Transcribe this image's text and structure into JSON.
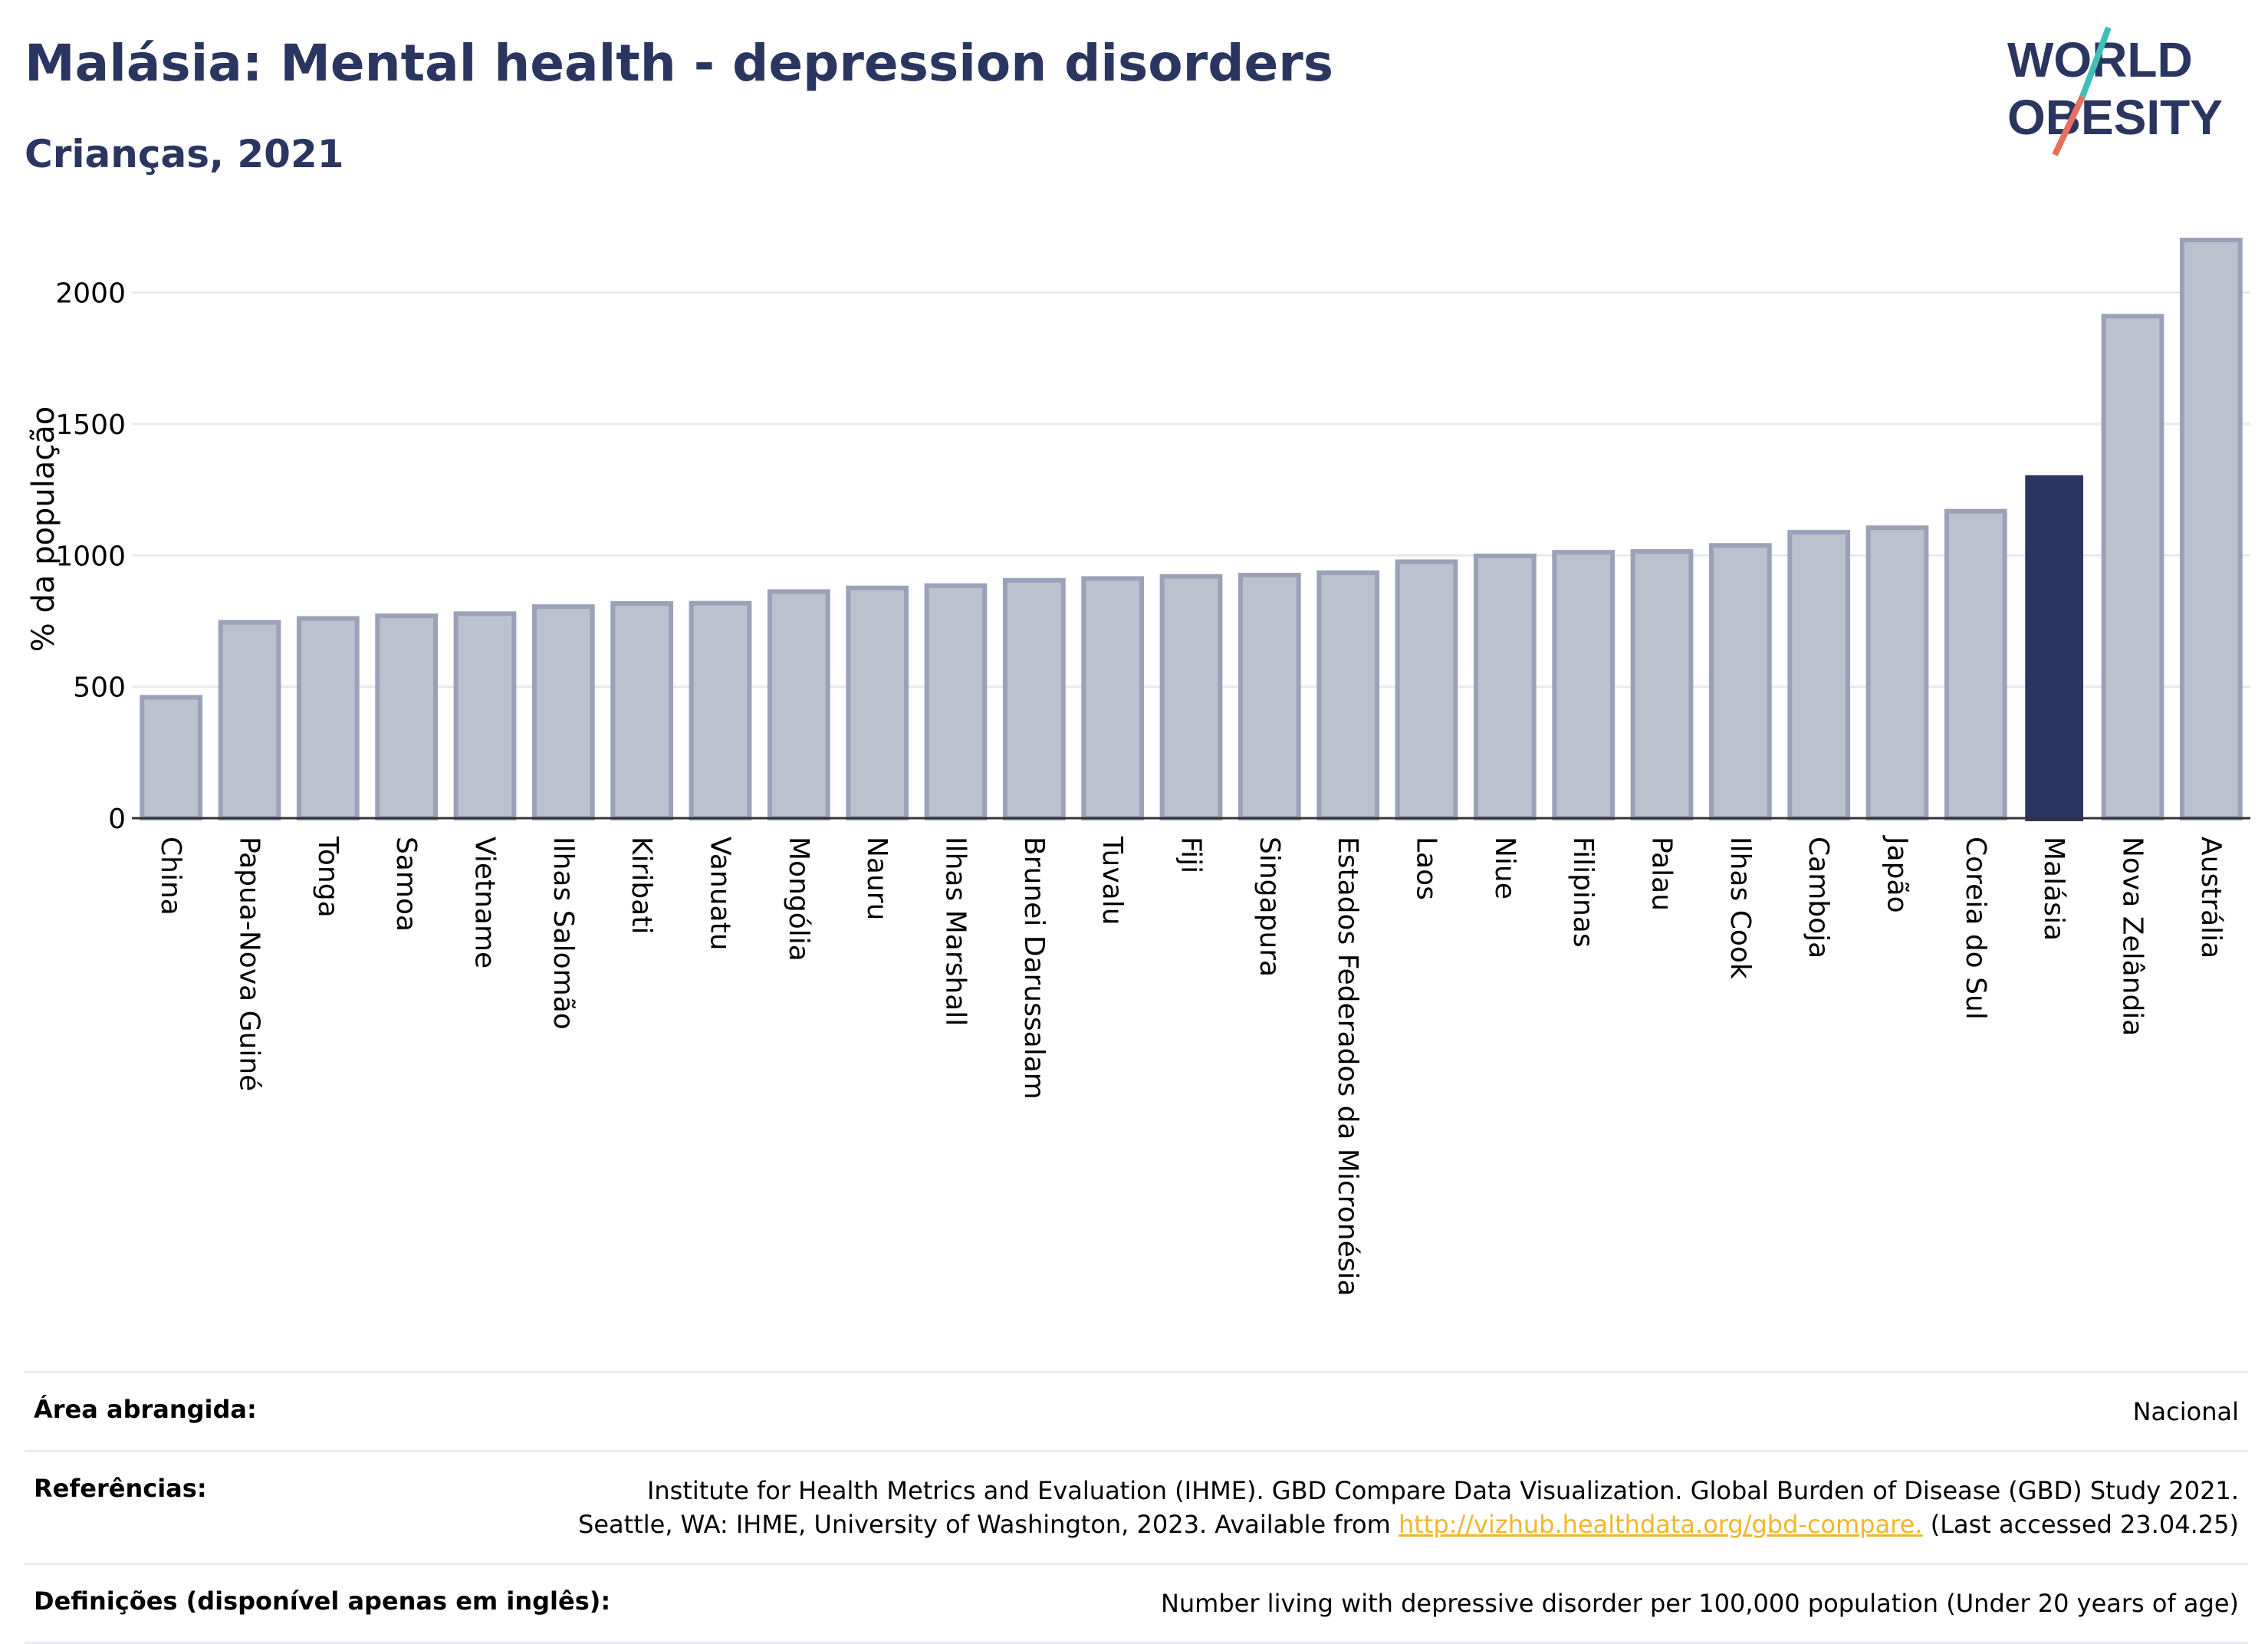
{
  "header": {
    "title": "Malásia: Mental health - depression disorders",
    "subtitle": "Crianças, 2021",
    "logo_line1": "WORLD",
    "logo_line2": "OBESITY"
  },
  "chart_data": {
    "type": "bar",
    "ylabel": "% da população",
    "ylim": [
      0,
      2200
    ],
    "yticks": [
      0,
      500,
      1000,
      1500,
      2000
    ],
    "grid": true,
    "categories": [
      "China",
      "Papua-Nova Guiné",
      "Tonga",
      "Samoa",
      "Vietname",
      "Ilhas Salomão",
      "Kiribati",
      "Vanuatu",
      "Mongólia",
      "Nauru",
      "Ilhas Marshall",
      "Brunei Darussalam",
      "Tuvalu",
      "Fiji",
      "Singapura",
      "Estados Federados da Micronésia",
      "Laos",
      "Niue",
      "Filipinas",
      "Palau",
      "Ilhas Cook",
      "Camboja",
      "Japão",
      "Coreia do Sul",
      "Malásia",
      "Nova Zelândia",
      "Austrália"
    ],
    "values": [
      460,
      745,
      760,
      770,
      778,
      805,
      817,
      818,
      862,
      876,
      885,
      905,
      912,
      920,
      925,
      934,
      976,
      998,
      1012,
      1015,
      1038,
      1088,
      1105,
      1168,
      1305,
      1910,
      2200
    ],
    "highlight": "Malásia",
    "colors": {
      "bar": "#bcc1cf",
      "bar_edge": "#9aa1b8",
      "highlight": "#2a3560",
      "grid": "#e6e9f0",
      "axis": "#333333"
    }
  },
  "info": {
    "area_label": "Área abrangida:",
    "area_value": "Nacional",
    "ref_label": "Referências:",
    "ref_line1": "Institute for Health Metrics and Evaluation (IHME). GBD Compare Data Visualization. Global Burden of Disease (GBD) Study 2021.",
    "ref_line2_pre": "Seattle, WA: IHME, University of Washington, 2023. Available from",
    "ref_link": "http://vizhub.healthdata.org/gbd-compare.",
    "ref_line2_post": "(Last accessed 23.04.25)",
    "def_label": "Definições (disponível apenas em inglês):",
    "def_value": "Number living with depressive disorder per 100,000 population (Under 20 years of age)"
  }
}
